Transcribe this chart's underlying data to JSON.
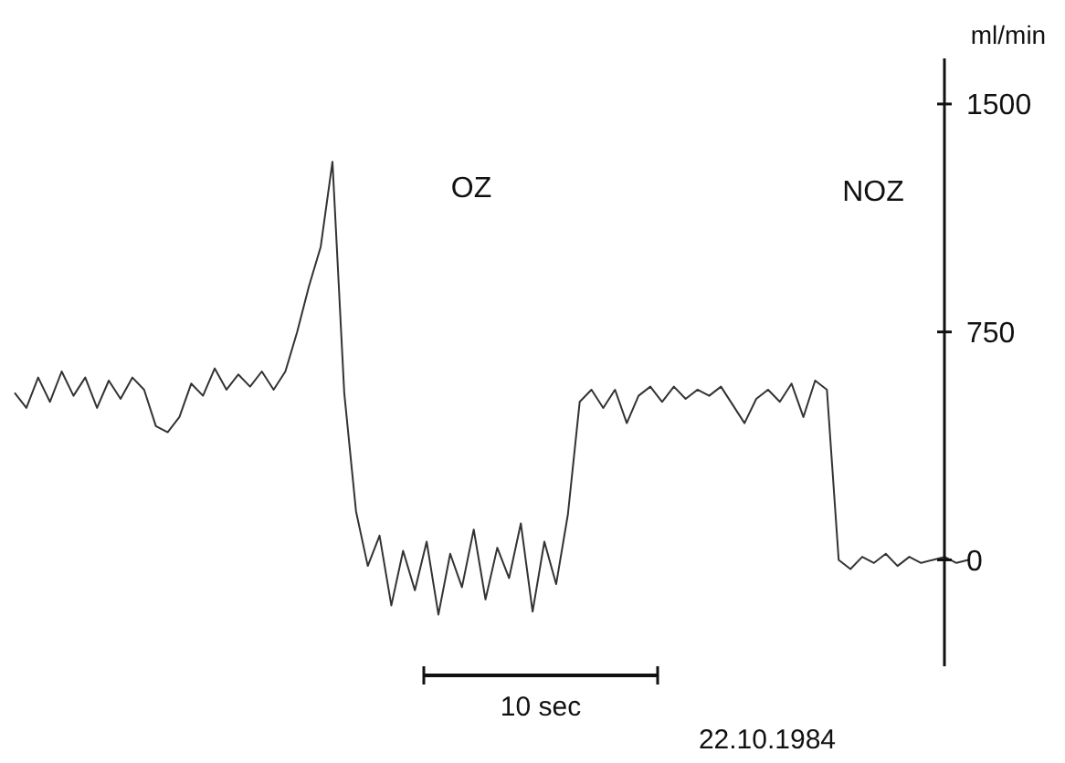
{
  "chart_data": {
    "type": "line",
    "ylabel": "ml/min",
    "ylim": [
      -350,
      1650
    ],
    "yticks": [
      0,
      750,
      1500
    ],
    "tick_labels": "y",
    "marker": "none",
    "line_style": "solid",
    "annotations": [
      "OZ",
      "NOZ",
      "10 sec",
      "22.10.1984"
    ],
    "categories": [
      null,
      null,
      null,
      null,
      null,
      null,
      null,
      null,
      null,
      null,
      null,
      null,
      null,
      null,
      null,
      null,
      null,
      null,
      null,
      null,
      null,
      null,
      null,
      null,
      null,
      null,
      null,
      null,
      null,
      null,
      null,
      null,
      null,
      null,
      null,
      null,
      null,
      null,
      null,
      null,
      null,
      null,
      null,
      null,
      null,
      null,
      null,
      null,
      null,
      null,
      null,
      null,
      null,
      null,
      null,
      null,
      null,
      null,
      null,
      null,
      null,
      null,
      null,
      null,
      null,
      null,
      null,
      null,
      null,
      null,
      null,
      null,
      null,
      null,
      null,
      null,
      null,
      null,
      null,
      null,
      null,
      null
    ],
    "series": [
      {
        "color": "#333333",
        "values": [
          550,
          500,
          600,
          520,
          620,
          540,
          600,
          500,
          590,
          530,
          600,
          560,
          440,
          420,
          470,
          580,
          540,
          630,
          560,
          610,
          570,
          620,
          560,
          620,
          750,
          900,
          1030,
          1310,
          550,
          160,
          -20,
          80,
          -150,
          30,
          -100,
          60,
          -180,
          20,
          -90,
          100,
          -130,
          40,
          -60,
          120,
          -170,
          60,
          -80,
          150,
          520,
          560,
          500,
          560,
          450,
          540,
          570,
          520,
          570,
          530,
          560,
          540,
          570,
          510,
          450,
          530,
          560,
          520,
          580,
          470,
          590,
          560,
          0,
          -30,
          10,
          -10,
          20,
          -20,
          10,
          -10,
          0,
          10,
          -10,
          0
        ]
      }
    ]
  }
}
